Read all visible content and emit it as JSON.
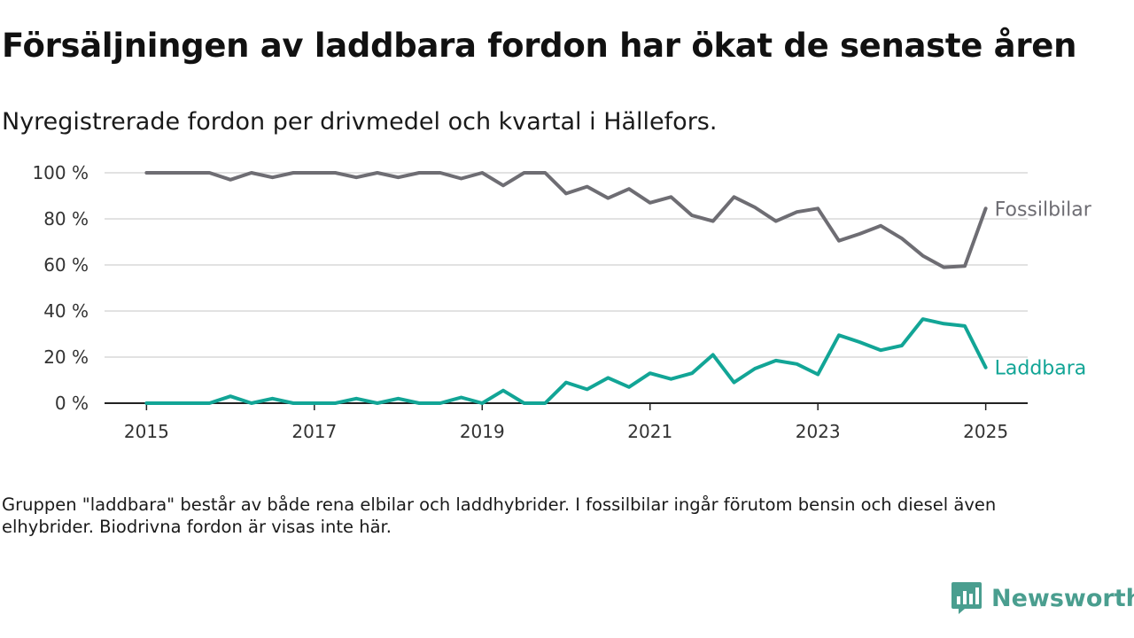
{
  "title": "Försäljningen av laddbara fordon har ökat de senaste åren",
  "subtitle": "Nyregistrerade fordon per drivmedel och kvartal i Hällefors.",
  "note": "Gruppen \"laddbara\" består av både rena elbilar och laddhybrider. I fossilbilar ingår förutom bensin och diesel även elhybrider. Biodrivna fordon är visas inte här.",
  "brand": {
    "name": "Newsworthy",
    "icon": "newsworthy-logo-icon",
    "color": "#4a9e8f"
  },
  "chart_data": {
    "type": "line",
    "x_start": 2015.0,
    "x_step": 0.25,
    "xlim": [
      2014.5,
      2025.5
    ],
    "ylim": [
      0,
      100
    ],
    "x_ticks": [
      {
        "value": 2015,
        "label": "2015"
      },
      {
        "value": 2017,
        "label": "2017"
      },
      {
        "value": 2019,
        "label": "2019"
      },
      {
        "value": 2021,
        "label": "2021"
      },
      {
        "value": 2023,
        "label": "2023"
      },
      {
        "value": 2025,
        "label": "2025"
      }
    ],
    "y_ticks": [
      {
        "value": 0,
        "label": "0 %"
      },
      {
        "value": 20,
        "label": "20 %"
      },
      {
        "value": 40,
        "label": "40 %"
      },
      {
        "value": 60,
        "label": "60 %"
      },
      {
        "value": 80,
        "label": "80 %"
      },
      {
        "value": 100,
        "label": "100 %"
      }
    ],
    "grid": true,
    "series": [
      {
        "name": "Fossilbilar",
        "color": "#6e6d73",
        "values": [
          100,
          100,
          100,
          100,
          97,
          100,
          98,
          100,
          100,
          100,
          98,
          100,
          98,
          100,
          100,
          97.5,
          100,
          94.5,
          100,
          100,
          91,
          94,
          89,
          93,
          87,
          89.5,
          81.5,
          79,
          89.5,
          85,
          79,
          83,
          84.5,
          70.5,
          73.5,
          77,
          71.5,
          64,
          59,
          59.5,
          84.5
        ]
      },
      {
        "name": "Laddbara",
        "color": "#12a596",
        "values": [
          0,
          0,
          0,
          0,
          3,
          0,
          2,
          0,
          0,
          0,
          2,
          0,
          2,
          0,
          0,
          2.5,
          0,
          5.5,
          0,
          0,
          9,
          6,
          11,
          7,
          13,
          10.5,
          13,
          21,
          9,
          15,
          18.5,
          17,
          12.5,
          29.5,
          26.5,
          23,
          25,
          36.5,
          34.5,
          33.5,
          15.5
        ]
      }
    ]
  }
}
